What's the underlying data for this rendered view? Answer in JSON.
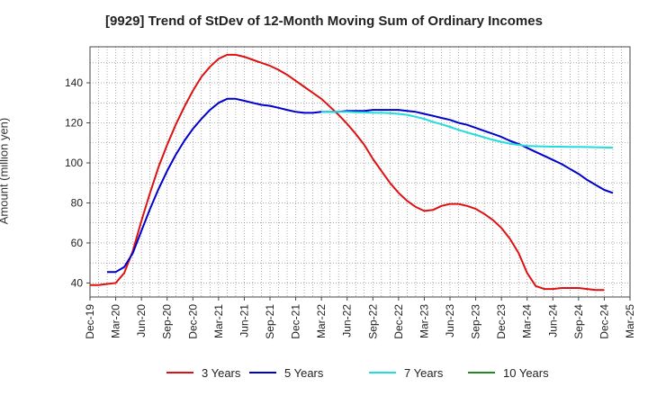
{
  "chart_data": {
    "type": "line",
    "title": "[9929]  Trend of StDev of 12-Month Moving Sum of Ordinary Incomes",
    "xlabel": "",
    "ylabel": "Amount (million yen)",
    "ylim": [
      33,
      158
    ],
    "yticks": [
      40,
      60,
      80,
      100,
      120,
      140
    ],
    "xticks": [
      "Dec-19",
      "Mar-20",
      "Jun-20",
      "Sep-20",
      "Dec-20",
      "Mar-21",
      "Jun-21",
      "Sep-21",
      "Dec-21",
      "Mar-22",
      "Jun-22",
      "Sep-22",
      "Dec-22",
      "Mar-23",
      "Jun-23",
      "Sep-23",
      "Dec-23",
      "Mar-24",
      "Jun-24",
      "Sep-24",
      "Dec-24",
      "Mar-25"
    ],
    "grid": true,
    "legend_position": "bottom",
    "series": [
      {
        "name": "3 Years",
        "color": "#dd1111",
        "points": [
          [
            "Dec-19",
            39
          ],
          [
            "Jan-20",
            39
          ],
          [
            "Feb-20",
            39.5
          ],
          [
            "Mar-20",
            40
          ],
          [
            "Apr-20",
            45
          ],
          [
            "May-20",
            56
          ],
          [
            "Jun-20",
            71
          ],
          [
            "Jul-20",
            85
          ],
          [
            "Aug-20",
            98
          ],
          [
            "Sep-20",
            109
          ],
          [
            "Oct-20",
            119
          ],
          [
            "Nov-20",
            128
          ],
          [
            "Dec-20",
            136
          ],
          [
            "Jan-21",
            143
          ],
          [
            "Feb-21",
            148
          ],
          [
            "Mar-21",
            152
          ],
          [
            "Apr-21",
            154
          ],
          [
            "May-21",
            154
          ],
          [
            "Jun-21",
            153
          ],
          [
            "Jul-21",
            151.5
          ],
          [
            "Aug-21",
            150
          ],
          [
            "Sep-21",
            148.5
          ],
          [
            "Oct-21",
            146.5
          ],
          [
            "Nov-21",
            144
          ],
          [
            "Dec-21",
            141
          ],
          [
            "Jan-22",
            138
          ],
          [
            "Feb-22",
            135
          ],
          [
            "Mar-22",
            132
          ],
          [
            "Apr-22",
            128
          ],
          [
            "May-22",
            124
          ],
          [
            "Jun-22",
            119.5
          ],
          [
            "Jul-22",
            114.5
          ],
          [
            "Aug-22",
            109
          ],
          [
            "Sep-22",
            102
          ],
          [
            "Oct-22",
            96
          ],
          [
            "Nov-22",
            90
          ],
          [
            "Dec-22",
            85
          ],
          [
            "Jan-23",
            81
          ],
          [
            "Feb-23",
            78
          ],
          [
            "Mar-23",
            76
          ],
          [
            "Apr-23",
            76.5
          ],
          [
            "May-23",
            78.5
          ],
          [
            "Jun-23",
            79.5
          ],
          [
            "Jul-23",
            79.5
          ],
          [
            "Aug-23",
            78.5
          ],
          [
            "Sep-23",
            77
          ],
          [
            "Oct-23",
            74.5
          ],
          [
            "Nov-23",
            71.5
          ],
          [
            "Dec-23",
            67.5
          ],
          [
            "Jan-24",
            62
          ],
          [
            "Feb-24",
            55
          ],
          [
            "Mar-24",
            45
          ],
          [
            "Apr-24",
            38.5
          ],
          [
            "May-24",
            37
          ],
          [
            "Jun-24",
            37
          ],
          [
            "Jul-24",
            37.5
          ],
          [
            "Aug-24",
            37.5
          ],
          [
            "Sep-24",
            37.5
          ],
          [
            "Oct-24",
            37
          ],
          [
            "Nov-24",
            36.5
          ],
          [
            "Dec-24",
            36.5
          ]
        ]
      },
      {
        "name": "5 Years",
        "color": "#0000cc",
        "points": [
          [
            "Feb-20",
            45.5
          ],
          [
            "Mar-20",
            45.5
          ],
          [
            "Apr-20",
            48
          ],
          [
            "May-20",
            55
          ],
          [
            "Jun-20",
            66
          ],
          [
            "Jul-20",
            77
          ],
          [
            "Aug-20",
            87
          ],
          [
            "Sep-20",
            96
          ],
          [
            "Oct-20",
            104
          ],
          [
            "Nov-20",
            111
          ],
          [
            "Dec-20",
            117
          ],
          [
            "Jan-21",
            122
          ],
          [
            "Feb-21",
            126.5
          ],
          [
            "Mar-21",
            130
          ],
          [
            "Apr-21",
            132
          ],
          [
            "May-21",
            132
          ],
          [
            "Jun-21",
            131
          ],
          [
            "Jul-21",
            130
          ],
          [
            "Aug-21",
            129
          ],
          [
            "Sep-21",
            128.5
          ],
          [
            "Oct-21",
            127.5
          ],
          [
            "Nov-21",
            126.5
          ],
          [
            "Dec-21",
            125.5
          ],
          [
            "Jan-22",
            125
          ],
          [
            "Feb-22",
            125
          ],
          [
            "Mar-22",
            125.5
          ],
          [
            "Apr-22",
            125.5
          ],
          [
            "May-22",
            125.5
          ],
          [
            "Jun-22",
            126
          ],
          [
            "Jul-22",
            126
          ],
          [
            "Aug-22",
            126
          ],
          [
            "Sep-22",
            126.5
          ],
          [
            "Oct-22",
            126.5
          ],
          [
            "Nov-22",
            126.5
          ],
          [
            "Dec-22",
            126.5
          ],
          [
            "Jan-23",
            126
          ],
          [
            "Feb-23",
            125.5
          ],
          [
            "Mar-23",
            124.5
          ],
          [
            "Apr-23",
            123.5
          ],
          [
            "May-23",
            122.5
          ],
          [
            "Jun-23",
            121.5
          ],
          [
            "Jul-23",
            120
          ],
          [
            "Aug-23",
            119
          ],
          [
            "Sep-23",
            117.5
          ],
          [
            "Oct-23",
            116
          ],
          [
            "Nov-23",
            114.5
          ],
          [
            "Dec-23",
            113
          ],
          [
            "Jan-24",
            111
          ],
          [
            "Feb-24",
            109.5
          ],
          [
            "Mar-24",
            107.5
          ],
          [
            "Apr-24",
            105.5
          ],
          [
            "May-24",
            103.5
          ],
          [
            "Jun-24",
            101.5
          ],
          [
            "Jul-24",
            99.5
          ],
          [
            "Aug-24",
            97
          ],
          [
            "Sep-24",
            94.5
          ],
          [
            "Oct-24",
            91.5
          ],
          [
            "Nov-24",
            89
          ],
          [
            "Dec-24",
            86.5
          ],
          [
            "Jan-25",
            85
          ]
        ]
      },
      {
        "name": "7 Years",
        "color": "#22dddd",
        "points": [
          [
            "Mar-22",
            125.5
          ],
          [
            "Apr-22",
            125.5
          ],
          [
            "May-22",
            125.5
          ],
          [
            "Jun-22",
            125.5
          ],
          [
            "Jul-22",
            125.3
          ],
          [
            "Aug-22",
            125.2
          ],
          [
            "Sep-22",
            125
          ],
          [
            "Oct-22",
            125
          ],
          [
            "Nov-22",
            124.8
          ],
          [
            "Dec-22",
            124.5
          ],
          [
            "Jan-23",
            124
          ],
          [
            "Feb-23",
            123
          ],
          [
            "Mar-23",
            122
          ],
          [
            "Apr-23",
            120.5
          ],
          [
            "May-23",
            119.3
          ],
          [
            "Jun-23",
            118
          ],
          [
            "Jul-23",
            116.5
          ],
          [
            "Aug-23",
            115.2
          ],
          [
            "Sep-23",
            114
          ],
          [
            "Oct-23",
            112.7
          ],
          [
            "Nov-23",
            111.5
          ],
          [
            "Dec-23",
            110.5
          ],
          [
            "Jan-24",
            109.6
          ],
          [
            "Feb-24",
            109
          ],
          [
            "Mar-24",
            108.5
          ],
          [
            "Apr-24",
            108.3
          ],
          [
            "May-24",
            108.2
          ],
          [
            "Jun-24",
            108.1
          ],
          [
            "Jul-24",
            108.1
          ],
          [
            "Aug-24",
            108
          ],
          [
            "Sep-24",
            108
          ],
          [
            "Oct-24",
            107.9
          ],
          [
            "Nov-24",
            107.8
          ],
          [
            "Dec-24",
            107.7
          ],
          [
            "Jan-25",
            107.6
          ]
        ]
      },
      {
        "name": "10 Years",
        "color": "#228822",
        "points": []
      }
    ]
  }
}
